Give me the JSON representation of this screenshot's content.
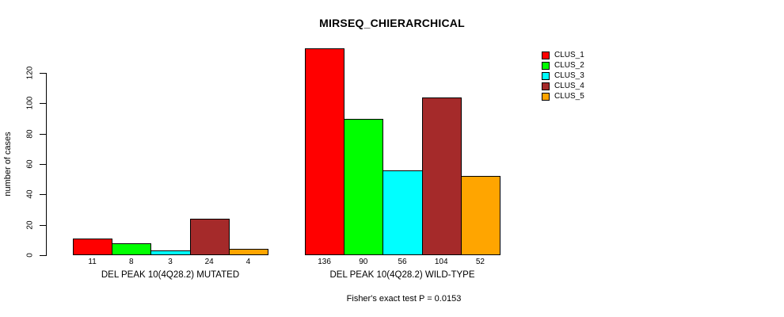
{
  "chart_data": {
    "type": "bar",
    "title": "MIRSEQ_CHIERARCHICAL",
    "subtitle": "Fisher's exact test P = 0.0153",
    "ylabel": "number of cases",
    "xlabel": "",
    "categories": [
      "DEL PEAK 10(4Q28.2) MUTATED",
      "DEL PEAK 10(4Q28.2) WILD-TYPE"
    ],
    "series": [
      {
        "name": "CLUS_1",
        "color": "#FF0000",
        "values": [
          11,
          136
        ]
      },
      {
        "name": "CLUS_2",
        "color": "#00FF00",
        "values": [
          8,
          90
        ]
      },
      {
        "name": "CLUS_3",
        "color": "#00FFFF",
        "values": [
          3,
          56
        ]
      },
      {
        "name": "CLUS_4",
        "color": "#A52A2A",
        "values": [
          24,
          104
        ]
      },
      {
        "name": "CLUS_5",
        "color": "#FFA500",
        "values": [
          4,
          52
        ]
      }
    ],
    "yticks": [
      0,
      20,
      40,
      60,
      80,
      100,
      120
    ],
    "ylim": [
      0,
      140
    ],
    "grid": false,
    "legend_position": "top-right",
    "bar_value_labels_shown": true,
    "bar_border_color": "#000000",
    "background_color": "#FFFFFF",
    "text_color": "#000000"
  }
}
